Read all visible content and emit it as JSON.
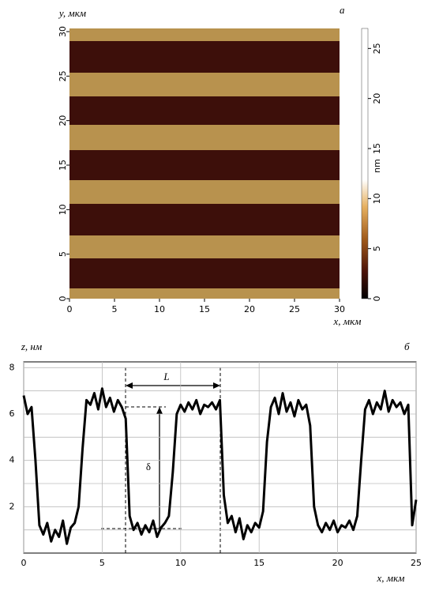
{
  "chart_data": [
    {
      "type": "image",
      "title": "а",
      "xlabel": "x, мкм",
      "ylabel": "y, мкм",
      "xlim": [
        0,
        30
      ],
      "ylim": [
        0,
        30
      ],
      "xticks": [
        0,
        5,
        10,
        15,
        20,
        25,
        30
      ],
      "yticks": [
        0,
        5,
        10,
        15,
        20,
        25,
        30
      ],
      "colorbar": {
        "label": "nm",
        "lim": [
          0,
          27
        ],
        "ticks": [
          0,
          5,
          10,
          15,
          20,
          25
        ]
      }
    },
    {
      "type": "line",
      "title": "б",
      "xlabel": "x, мкм",
      "ylabel": "z, нм",
      "xlim": [
        0,
        25
      ],
      "ylim": [
        0,
        8.25
      ],
      "xticks": [
        0,
        5,
        10,
        15,
        20,
        25
      ],
      "yticks": [
        2,
        4,
        6,
        8
      ],
      "ygrid": [
        1,
        2,
        3,
        4,
        5,
        6,
        7,
        8
      ],
      "grid": true,
      "color": "#000000",
      "annotations": [
        "L",
        "δ"
      ],
      "x": [
        0,
        0.25,
        0.5,
        0.75,
        1,
        1.25,
        1.5,
        1.75,
        2,
        2.25,
        2.5,
        2.75,
        3,
        3.25,
        3.5,
        3.75,
        4,
        4.25,
        4.5,
        4.75,
        5,
        5.25,
        5.5,
        5.75,
        6,
        6.25,
        6.5,
        6.75,
        7,
        7.25,
        7.5,
        7.75,
        8,
        8.25,
        8.5,
        8.75,
        9,
        9.25,
        9.5,
        9.75,
        10,
        10.25,
        10.5,
        10.75,
        11,
        11.25,
        11.5,
        11.75,
        12,
        12.25,
        12.5,
        12.75,
        13,
        13.25,
        13.5,
        13.75,
        14,
        14.25,
        14.5,
        14.75,
        15,
        15.25,
        15.5,
        15.75,
        16,
        16.25,
        16.5,
        16.75,
        17,
        17.25,
        17.5,
        17.75,
        18,
        18.25,
        18.5,
        18.75,
        19,
        19.25,
        19.5,
        19.75,
        20,
        20.25,
        20.5,
        20.75,
        21,
        21.25,
        21.5,
        21.75,
        22,
        22.25,
        22.5,
        22.75,
        23,
        23.25,
        23.5,
        23.75,
        24,
        24.25,
        24.5,
        24.75,
        25
      ],
      "values": [
        6.8,
        6.0,
        6.3,
        4.0,
        1.2,
        0.8,
        1.3,
        0.5,
        1.0,
        0.7,
        1.4,
        0.4,
        1.1,
        1.3,
        2.0,
        4.5,
        6.6,
        6.4,
        6.9,
        6.2,
        7.1,
        6.3,
        6.7,
        6.1,
        6.6,
        6.3,
        5.8,
        1.6,
        1.0,
        1.3,
        0.8,
        1.2,
        0.9,
        1.4,
        0.7,
        1.1,
        1.3,
        1.6,
        3.5,
        6.0,
        6.4,
        6.1,
        6.5,
        6.2,
        6.6,
        6.0,
        6.4,
        6.3,
        6.5,
        6.2,
        6.6,
        2.5,
        1.3,
        1.6,
        0.9,
        1.5,
        0.6,
        1.2,
        0.9,
        1.3,
        1.1,
        1.8,
        4.8,
        6.3,
        6.7,
        6.0,
        6.9,
        6.1,
        6.5,
        5.9,
        6.6,
        6.2,
        6.4,
        5.5,
        2.0,
        1.2,
        0.9,
        1.3,
        1.0,
        1.4,
        0.9,
        1.2,
        1.1,
        1.4,
        1.0,
        1.6,
        4.0,
        6.2,
        6.6,
        6.0,
        6.5,
        6.2,
        7.0,
        6.1,
        6.6,
        6.3,
        6.5,
        6.0,
        6.4,
        1.2,
        2.3
      ]
    }
  ]
}
